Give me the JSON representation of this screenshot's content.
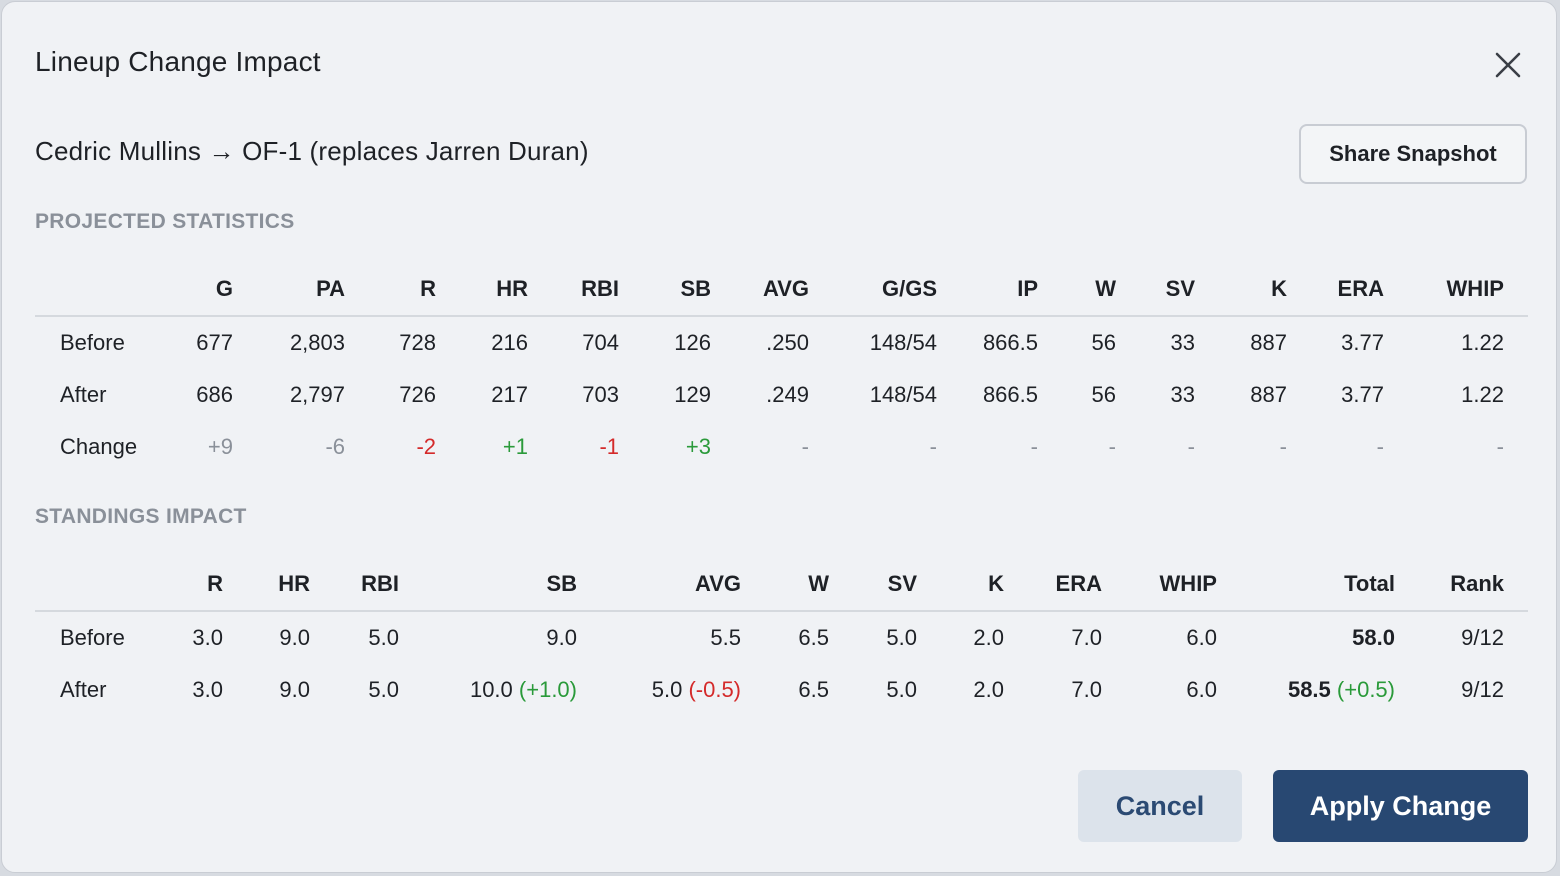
{
  "dialog": {
    "title": "Lineup Change Impact",
    "subtitle": "Cedric Mullins → OF-1 (replaces Jarren Duran)",
    "share_label": "Share Snapshot",
    "cancel_label": "Cancel",
    "apply_label": "Apply Change"
  },
  "projected": {
    "label": "PROJECTED STATISTICS",
    "columns": [
      "G",
      "PA",
      "R",
      "HR",
      "RBI",
      "SB",
      "AVG",
      "G/GS",
      "IP",
      "W",
      "SV",
      "K",
      "ERA",
      "WHIP"
    ],
    "rows": [
      {
        "label": "Before",
        "values": [
          "677",
          "2,803",
          "728",
          "216",
          "704",
          "126",
          ".250",
          "148/54",
          "866.5",
          "56",
          "33",
          "887",
          "3.77",
          "1.22"
        ]
      },
      {
        "label": "After",
        "values": [
          "686",
          "2,797",
          "726",
          "217",
          "703",
          "129",
          ".249",
          "148/54",
          "866.5",
          "56",
          "33",
          "887",
          "3.77",
          "1.22"
        ]
      },
      {
        "label": "Change",
        "values": [
          "+9",
          "-6",
          "-2",
          "+1",
          "-1",
          "+3",
          "-",
          "-",
          "-",
          "-",
          "-",
          "-",
          "-",
          "-"
        ]
      }
    ]
  },
  "standings": {
    "label": "STANDINGS IMPACT",
    "columns": [
      "R",
      "HR",
      "RBI",
      "SB",
      "AVG",
      "W",
      "SV",
      "K",
      "ERA",
      "WHIP",
      "Total",
      "Rank"
    ],
    "before": {
      "label": "Before",
      "values": [
        "3.0",
        "9.0",
        "5.0",
        "9.0",
        "5.5",
        "6.5",
        "5.0",
        "2.0",
        "7.0",
        "6.0",
        "58.0",
        "9/12"
      ]
    },
    "after": {
      "label": "After",
      "values": [
        "3.0",
        "9.0",
        "5.0",
        "10.0",
        "5.0",
        "6.5",
        "5.0",
        "2.0",
        "7.0",
        "6.0",
        "58.5",
        "9/12"
      ],
      "deltas": {
        "SB": "(+1.0)",
        "AVG": "(-0.5)",
        "Total": "(+0.5)"
      }
    }
  },
  "colors": {
    "positive": "#2a9a3a",
    "negative": "#d42a2a",
    "neutral": "#8a9099",
    "primary": "#284872"
  },
  "icons": {
    "close": "close-icon"
  }
}
